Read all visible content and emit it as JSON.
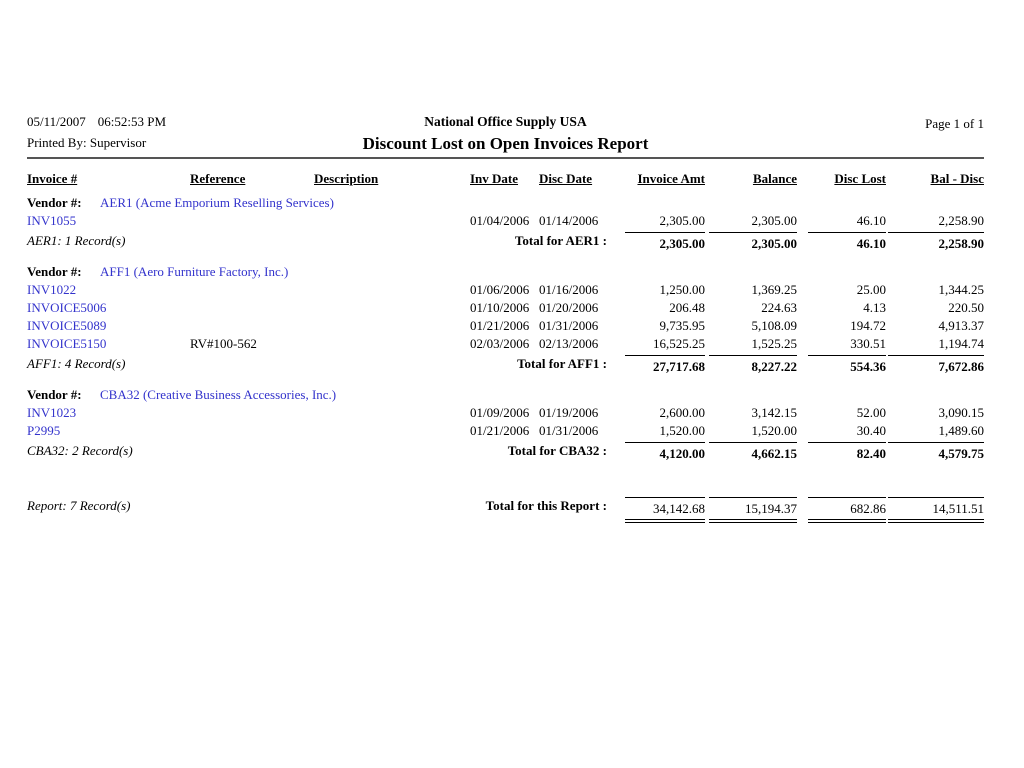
{
  "page": {
    "printed_date": "05/11/2007",
    "printed_time": "06:52:53 PM",
    "printed_by": "Printed By: Supervisor",
    "company": "National Office Supply USA",
    "report_title": "Discount Lost on Open Invoices Report",
    "page_label": "Page 1 of 1"
  },
  "colors": {
    "link_blue": "#3333CC",
    "text": "#000000",
    "header_rule": "#555555"
  },
  "columns": [
    "Invoice #",
    "Reference",
    "Description",
    "Inv Date",
    "Disc Date",
    "Invoice Amt",
    "Balance",
    "Disc Lost",
    "Bal - Disc"
  ],
  "groups": [
    {
      "vendor_label": "Vendor #:",
      "vendor_name": "AER1 (Acme Emporium Reselling Services)",
      "rows": [
        {
          "invoice": "INV1055",
          "reference": "",
          "description": "",
          "inv_date": "01/04/2006",
          "disc_date": "01/14/2006",
          "invoice_amt": "2,305.00",
          "balance": "2,305.00",
          "disc_lost": "46.10",
          "bal_disc": "2,258.90"
        }
      ],
      "records_label": "AER1: 1 Record(s)",
      "total_label": "Total for AER1 :",
      "total": {
        "invoice_amt": "2,305.00",
        "balance": "2,305.00",
        "disc_lost": "46.10",
        "bal_disc": "2,258.90"
      }
    },
    {
      "vendor_label": "Vendor #:",
      "vendor_name": "AFF1 (Aero Furniture Factory, Inc.)",
      "rows": [
        {
          "invoice": "INV1022",
          "reference": "",
          "description": "",
          "inv_date": "01/06/2006",
          "disc_date": "01/16/2006",
          "invoice_amt": "1,250.00",
          "balance": "1,369.25",
          "disc_lost": "25.00",
          "bal_disc": "1,344.25"
        },
        {
          "invoice": "INVOICE5006",
          "reference": "",
          "description": "",
          "inv_date": "01/10/2006",
          "disc_date": "01/20/2006",
          "invoice_amt": "206.48",
          "balance": "224.63",
          "disc_lost": "4.13",
          "bal_disc": "220.50"
        },
        {
          "invoice": "INVOICE5089",
          "reference": "",
          "description": "",
          "inv_date": "01/21/2006",
          "disc_date": "01/31/2006",
          "invoice_amt": "9,735.95",
          "balance": "5,108.09",
          "disc_lost": "194.72",
          "bal_disc": "4,913.37"
        },
        {
          "invoice": "INVOICE5150",
          "reference": "RV#100-562",
          "description": "",
          "inv_date": "02/03/2006",
          "disc_date": "02/13/2006",
          "invoice_amt": "16,525.25",
          "balance": "1,525.25",
          "disc_lost": "330.51",
          "bal_disc": "1,194.74"
        }
      ],
      "records_label": "AFF1: 4 Record(s)",
      "total_label": "Total for AFF1 :",
      "total": {
        "invoice_amt": "27,717.68",
        "balance": "8,227.22",
        "disc_lost": "554.36",
        "bal_disc": "7,672.86"
      }
    },
    {
      "vendor_label": "Vendor #:",
      "vendor_name": "CBA32 (Creative Business Accessories, Inc.)",
      "rows": [
        {
          "invoice": "INV1023",
          "reference": "",
          "description": "",
          "inv_date": "01/09/2006",
          "disc_date": "01/19/2006",
          "invoice_amt": "2,600.00",
          "balance": "3,142.15",
          "disc_lost": "52.00",
          "bal_disc": "3,090.15"
        },
        {
          "invoice": "P2995",
          "reference": "",
          "description": "",
          "inv_date": "01/21/2006",
          "disc_date": "01/31/2006",
          "invoice_amt": "1,520.00",
          "balance": "1,520.00",
          "disc_lost": "30.40",
          "bal_disc": "1,489.60"
        }
      ],
      "records_label": "CBA32: 2 Record(s)",
      "total_label": "Total for CBA32 :",
      "total": {
        "invoice_amt": "4,120.00",
        "balance": "4,662.15",
        "disc_lost": "82.40",
        "bal_disc": "4,579.75"
      }
    }
  ],
  "report_footer": {
    "records_label": "Report: 7 Record(s)",
    "total_label": "Total for this Report :",
    "total": {
      "invoice_amt": "34,142.68",
      "balance": "15,194.37",
      "disc_lost": "682.86",
      "bal_disc": "14,511.51"
    }
  }
}
